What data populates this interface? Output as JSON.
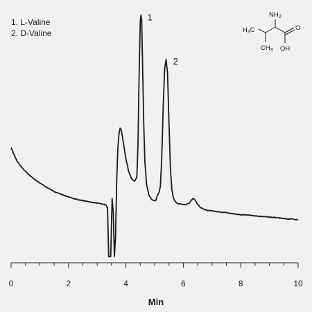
{
  "chart_data": {
    "type": "line",
    "title": "",
    "xlabel": "Min",
    "ylabel": "",
    "xlim": [
      0,
      10
    ],
    "xticks": [
      0,
      2,
      4,
      6,
      8,
      10
    ],
    "yaxis_visible": false,
    "grid": false,
    "legend": {
      "placement": "top-left",
      "entries": [
        "1. L-Valine",
        "2. D-Valine"
      ]
    },
    "peak_labels": [
      {
        "text": "1",
        "x": 4.55,
        "y": 100
      },
      {
        "text": "2",
        "x": 5.45,
        "y": 81
      }
    ],
    "structure": {
      "name": "Valine",
      "labels": [
        "NH2",
        "H3C",
        "CH3",
        "O",
        "OH"
      ]
    },
    "series": [
      {
        "values": [
          [
            0.0,
            44.0
          ],
          [
            0.1,
            41.0
          ],
          [
            0.2,
            38.3
          ],
          [
            0.3,
            36.5
          ],
          [
            0.4,
            35.0
          ],
          [
            0.6,
            32.5
          ],
          [
            0.8,
            30.4
          ],
          [
            1.0,
            28.7
          ],
          [
            1.2,
            27.1
          ],
          [
            1.4,
            25.7
          ],
          [
            1.6,
            24.5
          ],
          [
            1.8,
            23.6
          ],
          [
            2.0,
            22.7
          ],
          [
            2.2,
            21.9
          ],
          [
            2.4,
            21.3
          ],
          [
            2.6,
            20.8
          ],
          [
            2.8,
            20.4
          ],
          [
            3.0,
            20.0
          ],
          [
            3.2,
            19.6
          ],
          [
            3.3,
            19.3
          ],
          [
            3.36,
            18.0
          ],
          [
            3.4,
            -3.0
          ],
          [
            3.47,
            -3.0
          ],
          [
            3.52,
            22.0
          ],
          [
            3.56,
            16.0
          ],
          [
            3.6,
            -3.0
          ],
          [
            3.64,
            6.0
          ],
          [
            3.68,
            30.0
          ],
          [
            3.72,
            44.0
          ],
          [
            3.76,
            50.0
          ],
          [
            3.8,
            52.5
          ],
          [
            3.84,
            51.5
          ],
          [
            3.9,
            47.0
          ],
          [
            4.0,
            39.0
          ],
          [
            4.1,
            33.5
          ],
          [
            4.2,
            30.5
          ],
          [
            4.3,
            29.5
          ],
          [
            4.38,
            31.0
          ],
          [
            4.42,
            45.0
          ],
          [
            4.46,
            75.0
          ],
          [
            4.5,
            98.0
          ],
          [
            4.52,
            101.0
          ],
          [
            4.55,
            99.0
          ],
          [
            4.58,
            80.0
          ],
          [
            4.62,
            55.0
          ],
          [
            4.66,
            38.0
          ],
          [
            4.72,
            28.0
          ],
          [
            4.8,
            23.5
          ],
          [
            4.9,
            21.5
          ],
          [
            5.0,
            21.0
          ],
          [
            5.05,
            21.5
          ],
          [
            5.1,
            23.5
          ],
          [
            5.15,
            24.5
          ],
          [
            5.2,
            27.0
          ],
          [
            5.25,
            40.0
          ],
          [
            5.3,
            62.0
          ],
          [
            5.35,
            78.0
          ],
          [
            5.4,
            82.0
          ],
          [
            5.45,
            76.0
          ],
          [
            5.5,
            55.0
          ],
          [
            5.55,
            35.0
          ],
          [
            5.6,
            26.0
          ],
          [
            5.65,
            22.5
          ],
          [
            5.7,
            21.0
          ],
          [
            5.8,
            19.8
          ],
          [
            6.0,
            19.5
          ],
          [
            6.1,
            19.3
          ],
          [
            6.2,
            20.0
          ],
          [
            6.3,
            21.5
          ],
          [
            6.35,
            22.0
          ],
          [
            6.4,
            21.5
          ],
          [
            6.5,
            19.5
          ],
          [
            6.6,
            18.0
          ],
          [
            6.8,
            17.0
          ],
          [
            7.0,
            16.7
          ],
          [
            7.2,
            16.2
          ],
          [
            7.4,
            16.0
          ],
          [
            7.6,
            15.7
          ],
          [
            7.8,
            15.3
          ],
          [
            8.0,
            15.0
          ],
          [
            8.2,
            14.9
          ],
          [
            8.4,
            14.7
          ],
          [
            8.6,
            14.4
          ],
          [
            8.8,
            14.2
          ],
          [
            9.0,
            14.0
          ],
          [
            9.2,
            13.8
          ],
          [
            9.4,
            13.5
          ],
          [
            9.6,
            13.2
          ],
          [
            9.8,
            13.2
          ],
          [
            10.0,
            12.8
          ]
        ]
      }
    ]
  }
}
